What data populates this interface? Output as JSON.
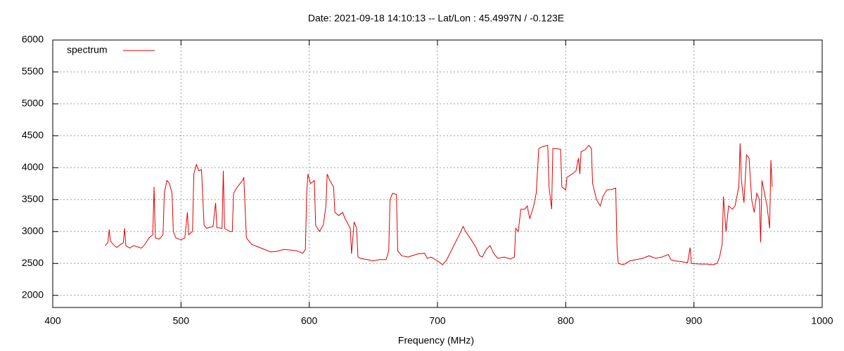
{
  "chart_data": {
    "type": "line",
    "title": "Date: 2021-09-18 14:10:13  --  Lat/Lon : 45.4997N / -0.123E",
    "x_label": "Frequency (MHz)",
    "xlim": [
      400,
      1000
    ],
    "xticks": [
      400,
      500,
      600,
      700,
      800,
      900,
      1000
    ],
    "ylim": [
      1810,
      6000
    ],
    "yticks": [
      2000,
      2500,
      3000,
      3500,
      4000,
      4500,
      5000,
      5500,
      6000
    ],
    "grid": true,
    "legend": "top-left",
    "x": [
      441,
      443,
      444,
      445,
      448,
      450,
      453,
      455,
      456,
      457,
      460,
      463,
      466,
      469,
      472,
      475,
      478,
      479,
      480,
      483,
      486,
      487,
      489,
      491,
      493,
      494,
      496,
      500,
      503,
      505,
      506,
      509,
      510,
      512,
      514,
      516,
      518,
      520,
      525,
      527,
      528,
      532,
      533,
      534,
      538,
      540,
      541,
      544,
      548,
      549,
      551,
      555,
      560,
      565,
      570,
      575,
      580,
      585,
      590,
      595,
      597,
      598,
      599,
      601,
      604,
      605,
      608,
      611,
      613,
      614,
      616,
      619,
      620,
      623,
      626,
      628,
      632,
      633,
      635,
      637,
      638,
      640,
      645,
      650,
      655,
      660,
      662,
      663,
      665,
      668,
      669,
      672,
      677,
      680,
      685,
      690,
      692,
      695,
      700,
      704,
      707,
      712,
      717,
      720,
      722,
      727,
      730,
      733,
      735,
      738,
      741,
      744,
      747,
      752,
      757,
      760,
      761,
      763,
      765,
      768,
      770,
      772,
      775,
      777,
      779,
      782,
      786,
      787,
      789,
      790,
      793,
      796,
      797,
      800,
      801,
      805,
      808,
      810,
      811,
      812,
      815,
      818,
      820,
      821,
      824,
      827,
      829,
      832,
      836,
      839,
      840,
      841,
      845,
      850,
      855,
      860,
      865,
      870,
      875,
      880,
      882,
      885,
      890,
      895,
      897,
      898,
      905,
      910,
      915,
      918,
      920,
      922,
      923,
      925,
      927,
      930,
      932,
      935,
      936,
      937,
      939,
      941,
      943,
      945,
      947,
      949,
      951,
      952,
      953,
      955,
      957,
      959,
      960,
      961
    ],
    "series": [
      {
        "name": "spectrum",
        "color": "#e00000",
        "values": [
          2780,
          2830,
          3030,
          2850,
          2780,
          2750,
          2800,
          2820,
          3050,
          2780,
          2740,
          2780,
          2760,
          2740,
          2800,
          2900,
          2950,
          3700,
          2900,
          2880,
          2950,
          3600,
          3800,
          3750,
          3600,
          3000,
          2900,
          2870,
          2900,
          3300,
          2950,
          3000,
          3900,
          4050,
          3950,
          3970,
          3100,
          3050,
          3080,
          3450,
          3060,
          3050,
          3950,
          3050,
          3000,
          3000,
          3600,
          3700,
          3800,
          3850,
          2900,
          2800,
          2760,
          2720,
          2680,
          2690,
          2720,
          2710,
          2700,
          2660,
          2720,
          3600,
          3900,
          3750,
          3800,
          3100,
          3000,
          3100,
          3400,
          3900,
          3800,
          3700,
          3300,
          3250,
          3300,
          3200,
          3050,
          2650,
          3150,
          3050,
          2600,
          2580,
          2560,
          2540,
          2560,
          2560,
          2700,
          3500,
          3600,
          3580,
          2700,
          2620,
          2600,
          2620,
          2650,
          2660,
          2580,
          2600,
          2540,
          2480,
          2550,
          2750,
          2950,
          3080,
          3000,
          2850,
          2750,
          2620,
          2600,
          2720,
          2780,
          2650,
          2580,
          2600,
          2570,
          2600,
          3050,
          3000,
          3350,
          3350,
          3400,
          3200,
          3400,
          3600,
          4300,
          4330,
          4350,
          3700,
          3350,
          4300,
          4300,
          4290,
          3700,
          3650,
          3850,
          3900,
          3950,
          4150,
          3900,
          4250,
          4280,
          4350,
          4300,
          3750,
          3500,
          3400,
          3550,
          3650,
          3660,
          3680,
          2750,
          2500,
          2480,
          2540,
          2560,
          2580,
          2620,
          2580,
          2600,
          2640,
          2560,
          2540,
          2530,
          2510,
          2750,
          2500,
          2490,
          2490,
          2480,
          2500,
          2600,
          2800,
          3550,
          3000,
          3400,
          3350,
          3400,
          3700,
          4380,
          3800,
          3450,
          4200,
          4150,
          3500,
          3300,
          3600,
          3500,
          2830,
          3800,
          3600,
          3400,
          3050,
          4120,
          3700
        ]
      }
    ]
  }
}
